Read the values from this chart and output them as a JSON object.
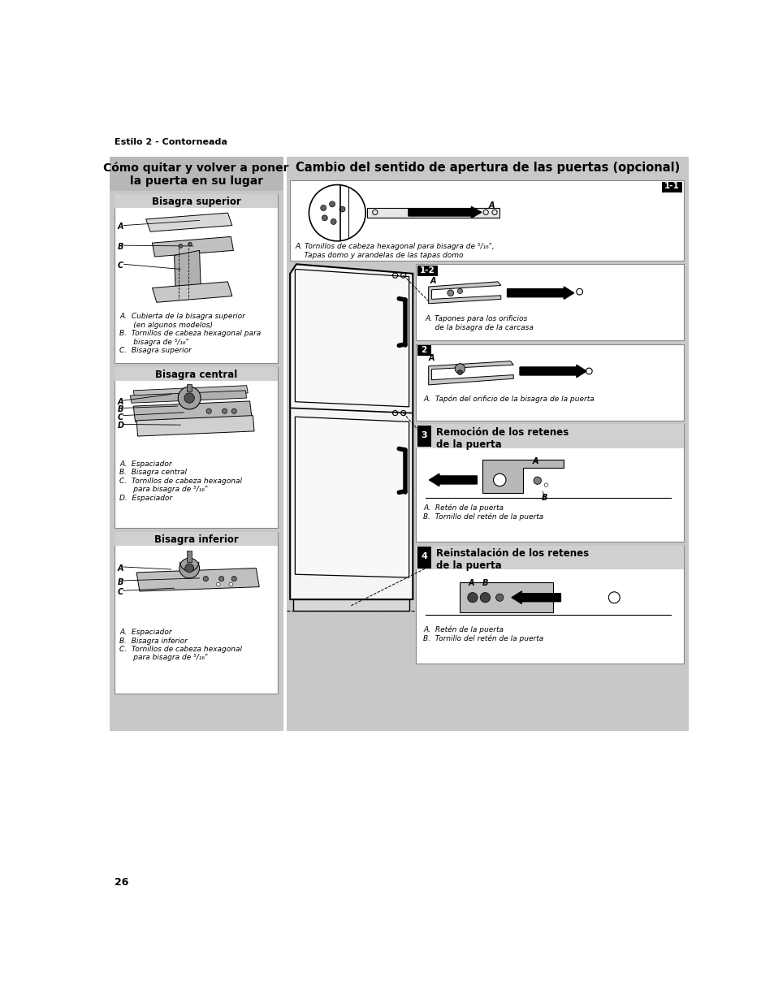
{
  "page_bg": "#c8c8c8",
  "white_bg": "#ffffff",
  "panel_bg": "#c8c8c8",
  "title_top": "Estilo 2 - Contorneada",
  "left_panel_title": "Cómo quitar y volver a poner\nla puerta en su lugar",
  "right_panel_title": "Cambio del sentido de apertura de las puertas (opcional)",
  "bisagra_superior_title": "Bisagra superior",
  "bisagra_superior_cap": "A.  Cubierta de la bisagra superior\n      (en algunos modelos)\nB.  Tornillos de cabeza hexagonal para\n      bisagra de ⁵/₁₆\"\nC.  Bisagra superior",
  "bisagra_central_title": "Bisagra central",
  "bisagra_central_cap": "A.  Espaciador\nB.  Bisagra central\nC.  Tornillos de cabeza hexagonal\n      para bisagra de ⁵/₁₆\"\nD.  Espaciador",
  "bisagra_inferior_title": "Bisagra inferior",
  "bisagra_inferior_cap": "A.  Espaciador\nB.  Bisagra inferior\nC.  Tornillos de cabeza hexagonal\n      para bisagra de ⁵/₁₆\"",
  "step11_label": "1-1",
  "step11_caption": "A. Tornillos de cabeza hexagonal para bisagra de ⁵/₁₆\",\n    Tapas domo y arandelas de las tapas domo",
  "step12_label": "1-2",
  "step12_caption": "A. Tapones para los orificios\n    de la bisagra de la carcasa",
  "step2_label": "2",
  "step2_caption": "A.  Tapón del orificio de la bisagra de la puerta",
  "step3_label": "3",
  "step3_title": "Remoción de los retenes\nde la puerta",
  "step3_caption": "A.  Retén de la puerta\nB.  Tornillo del retén de la puerta",
  "step4_label": "4",
  "step4_title": "Reinstalación de los retenes\nde la puerta",
  "step4_caption": "A.  Retén de la puerta\nB.  Tornillo del retén de la puerta",
  "page_number": "26"
}
